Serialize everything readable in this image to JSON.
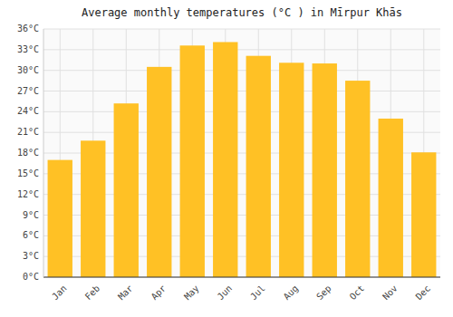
{
  "chart_data": {
    "type": "bar",
    "title": "Average monthly temperatures (°C ) in Mīrpur Khās",
    "categories": [
      "Jan",
      "Feb",
      "Mar",
      "Apr",
      "May",
      "Jun",
      "Jul",
      "Aug",
      "Sep",
      "Oct",
      "Nov",
      "Dec"
    ],
    "values": [
      17.0,
      19.8,
      25.2,
      30.5,
      33.6,
      34.1,
      32.1,
      31.1,
      31.0,
      28.5,
      23.0,
      18.1
    ],
    "color": "#FFC125",
    "ylim": [
      0,
      36
    ],
    "yticks": [
      {
        "value": 0,
        "label": "0°C"
      },
      {
        "value": 3,
        "label": "3°C"
      },
      {
        "value": 6,
        "label": "6°C"
      },
      {
        "value": 9,
        "label": "9°C"
      },
      {
        "value": 12,
        "label": "12°C"
      },
      {
        "value": 15,
        "label": "15°C"
      },
      {
        "value": 18,
        "label": "18°C"
      },
      {
        "value": 21,
        "label": "21°C"
      },
      {
        "value": 24,
        "label": "24°C"
      },
      {
        "value": 27,
        "label": "27°C"
      },
      {
        "value": 30,
        "label": "30°C"
      },
      {
        "value": 33,
        "label": "33°C"
      },
      {
        "value": 36,
        "label": "36°C"
      }
    ],
    "grid": true
  }
}
